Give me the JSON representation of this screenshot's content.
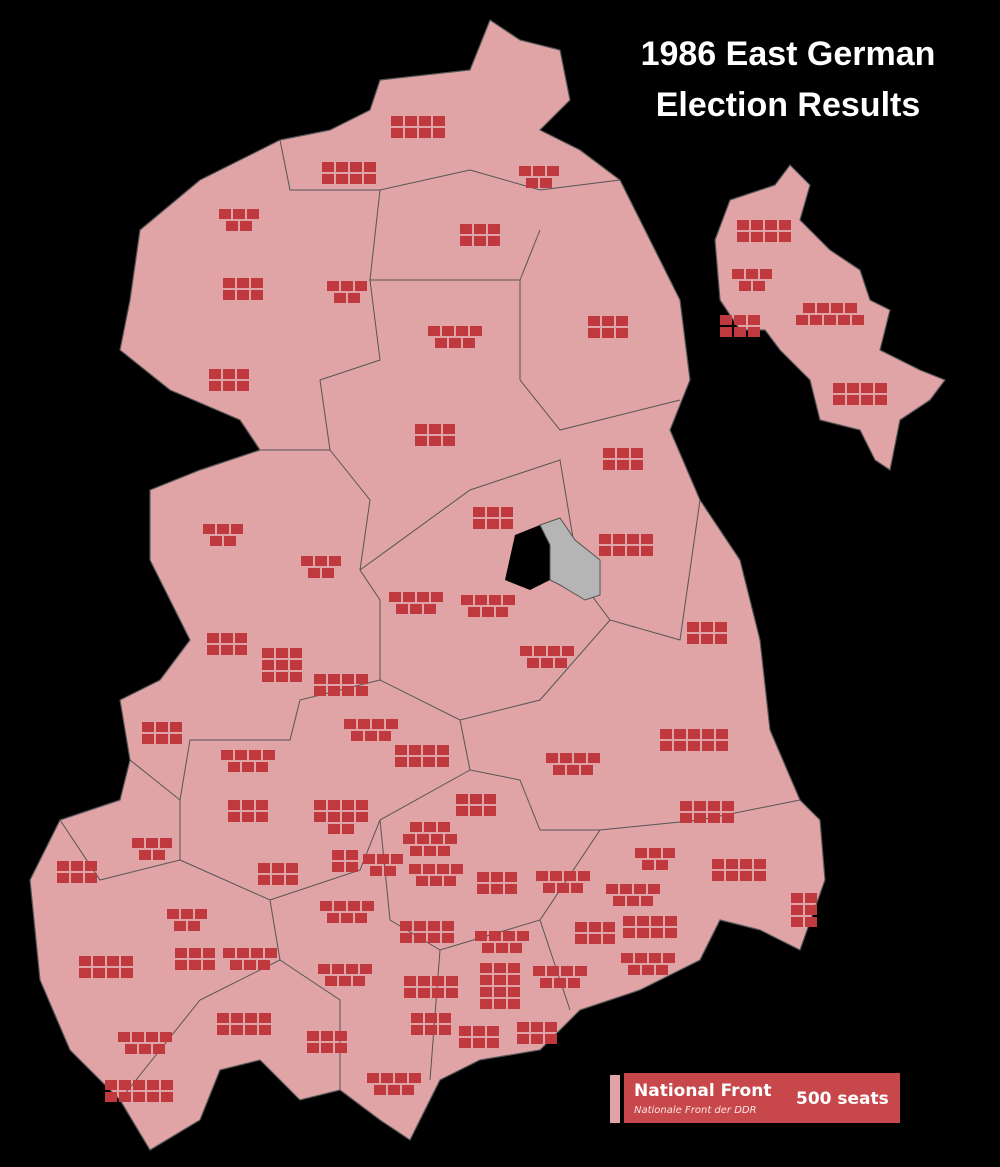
{
  "header": {
    "title_lines": [
      "1986 East German",
      "Election Results"
    ]
  },
  "legend": {
    "party": "National Front",
    "party_native": "Nationale Front der DDR",
    "seats": "500 seats"
  }
}
